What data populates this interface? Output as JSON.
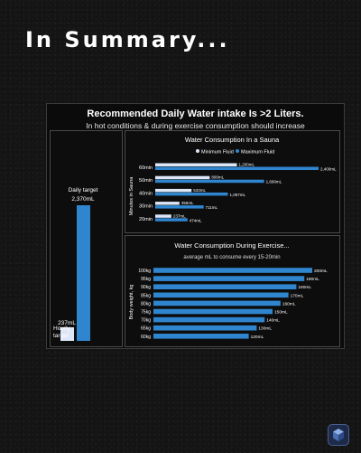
{
  "page": {
    "headline": "In Summary..."
  },
  "panel": {
    "title": "Recommended Daily Water intake Is >2 Liters.",
    "subtitle": "In hot conditions & during exercise consumption should increase"
  },
  "colors": {
    "light": "#dde6f7",
    "blue": "#2f86cf",
    "text": "#ffffff"
  },
  "chart_data": [
    {
      "id": "daily",
      "type": "bar",
      "categories": [
        "Hourly target",
        "Daily target"
      ],
      "values": [
        237,
        2370
      ],
      "labels": [
        "Hourly\ntarget",
        "Daily target"
      ],
      "value_labels": [
        "237mL",
        "2,370mL"
      ],
      "colors": [
        "#dde6f7",
        "#2f86cf"
      ]
    },
    {
      "id": "sauna",
      "type": "bar",
      "orientation": "horizontal",
      "title": "Water Consumption In a Sauna",
      "ylabel": "Minutes in Sauna",
      "categories": [
        "60min",
        "50min",
        "40min",
        "30min",
        "20min"
      ],
      "legend_position": "top",
      "series": [
        {
          "name": "Minimum Fluid",
          "color": "#dde6f7",
          "values": [
            1200,
            800,
            533,
            356,
            237
          ],
          "labels": [
            "1,200mL",
            "800mL",
            "533mL",
            "356mL",
            "237mL"
          ]
        },
        {
          "name": "Maximum Fluid",
          "color": "#2f86cf",
          "values": [
            2400,
            1600,
            1067,
            711,
            474
          ],
          "labels": [
            "2,400mL",
            "1,600mL",
            "1,067mL",
            "711mL",
            "474mL"
          ]
        }
      ]
    },
    {
      "id": "exercise",
      "type": "bar",
      "orientation": "horizontal",
      "title": "Water Consumption During Exercise...",
      "subtitle": "average mL to consume every 15-20min",
      "ylabel": "Body weight, kg",
      "categories": [
        "100kg",
        "95kg",
        "90kg",
        "85kg",
        "80kg",
        "75kg",
        "70kg",
        "65kg",
        "60kg"
      ],
      "values": [
        200,
        190,
        180,
        170,
        160,
        150,
        140,
        130,
        120
      ],
      "labels": [
        "200mL",
        "190mL",
        "180mL",
        "170mL",
        "160mL",
        "150mL",
        "140mL",
        "130mL",
        "120mL"
      ],
      "color": "#2f86cf"
    }
  ]
}
